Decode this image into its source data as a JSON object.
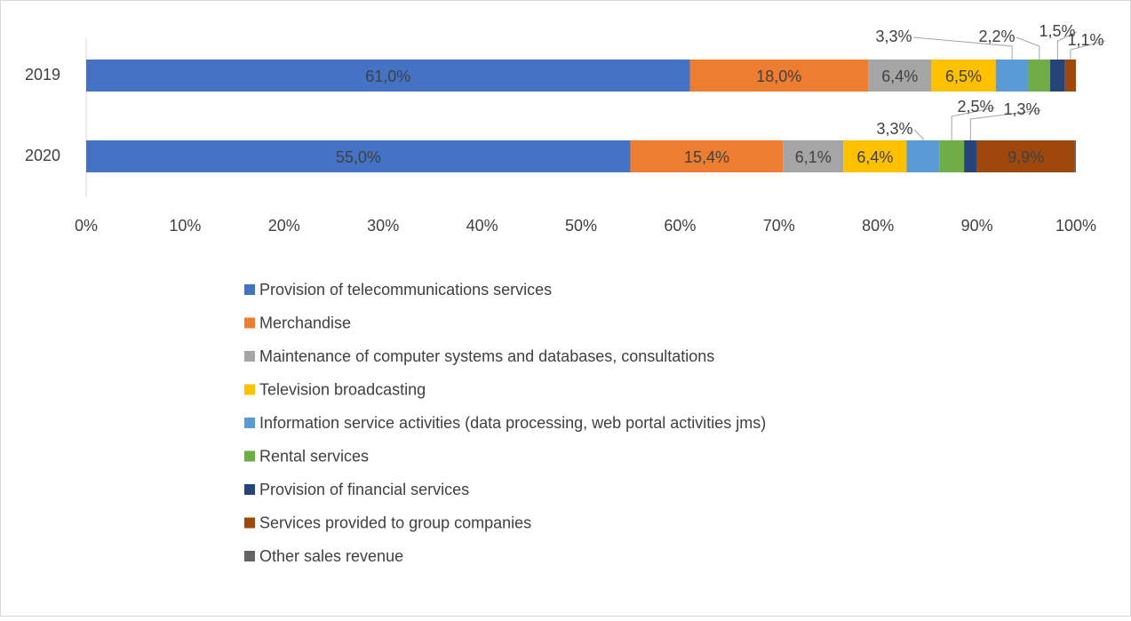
{
  "chart_data": {
    "type": "stacked_bar_horizontal",
    "categories": [
      "2019",
      "2020"
    ],
    "series": [
      {
        "name": "Provision of telecommunications services",
        "color": "#4472c4",
        "values": [
          61.0,
          55.0
        ],
        "value_labels": [
          "61,0%",
          "55,0%"
        ]
      },
      {
        "name": "Merchandise",
        "color": "#ed7d31",
        "values": [
          18.0,
          15.4
        ],
        "value_labels": [
          "18,0%",
          "15,4%"
        ]
      },
      {
        "name": "Maintenance of computer systems and databases, consultations",
        "color": "#a5a5a5",
        "values": [
          6.4,
          6.1
        ],
        "value_labels": [
          "6,4%",
          "6,1%"
        ]
      },
      {
        "name": "Television broadcasting",
        "color": "#ffc000",
        "values": [
          6.5,
          6.4
        ],
        "value_labels": [
          "6,5%",
          "6,4%"
        ]
      },
      {
        "name": "Information service activities (data processing, web portal activities jms)",
        "color": "#5b9bd5",
        "values": [
          3.3,
          3.3
        ],
        "value_labels": [
          "3,3%",
          "3,3%"
        ]
      },
      {
        "name": "Rental services",
        "color": "#70ad47",
        "values": [
          2.2,
          2.5
        ],
        "value_labels": [
          "2,2%",
          "2,5%"
        ]
      },
      {
        "name": "Provision of financial services",
        "color": "#264478",
        "values": [
          1.5,
          1.3
        ],
        "value_labels": [
          "1,5%",
          "1,3%"
        ]
      },
      {
        "name": "Services provided to group companies",
        "color": "#9e480e",
        "values": [
          1.1,
          9.9
        ],
        "value_labels": [
          "1,1%",
          "9,9%"
        ]
      },
      {
        "name": "Other sales revenue",
        "color": "#636363",
        "values": [
          0,
          0.1
        ],
        "value_labels": [
          null,
          null
        ]
      }
    ],
    "xlim": [
      0,
      100
    ],
    "xticks": [
      {
        "value": 0,
        "label": "0%"
      },
      {
        "value": 10,
        "label": "10%"
      },
      {
        "value": 20,
        "label": "20%"
      },
      {
        "value": 30,
        "label": "30%"
      },
      {
        "value": 40,
        "label": "40%"
      },
      {
        "value": 50,
        "label": "50%"
      },
      {
        "value": 60,
        "label": "60%"
      },
      {
        "value": 70,
        "label": "70%"
      },
      {
        "value": 80,
        "label": "80%"
      },
      {
        "value": 90,
        "label": "90%"
      },
      {
        "value": 100,
        "label": "100%"
      }
    ],
    "legend": "bottom"
  }
}
